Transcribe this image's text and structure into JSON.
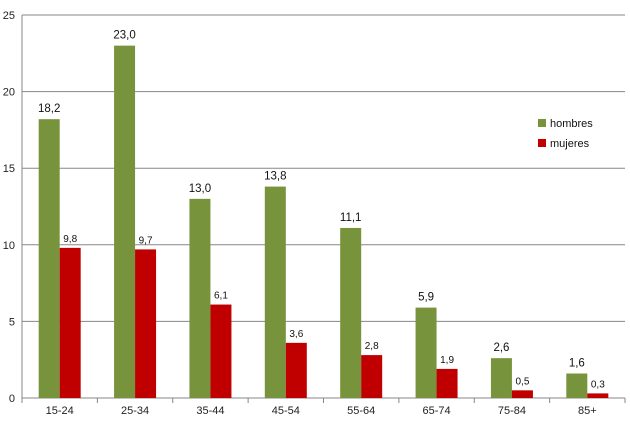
{
  "chart_data": {
    "type": "bar",
    "title": "",
    "xlabel": "",
    "ylabel": "",
    "categories": [
      "15-24",
      "25-34",
      "35-44",
      "45-54",
      "55-64",
      "65-74",
      "75-84",
      "85+"
    ],
    "ylim": [
      0,
      25
    ],
    "yticks": [
      "0",
      "5",
      "10",
      "15",
      "20",
      "25"
    ],
    "grid": true,
    "legend_position": "right",
    "series": [
      {
        "name": "hombres",
        "color": "#77933C",
        "values": [
          18.2,
          23.0,
          13.0,
          13.8,
          11.1,
          5.9,
          2.6,
          1.6
        ],
        "labels": [
          "18,2",
          "23,0",
          "13,0",
          "13,8",
          "11,1",
          "5,9",
          "2,6",
          "1,6"
        ]
      },
      {
        "name": "mujeres",
        "color": "#C00000",
        "values": [
          9.8,
          9.7,
          6.1,
          3.6,
          2.8,
          1.9,
          0.5,
          0.3
        ],
        "labels": [
          "9,8",
          "9,7",
          "6,1",
          "3,6",
          "2,8",
          "1,9",
          "0,5",
          "0,3"
        ]
      }
    ]
  }
}
